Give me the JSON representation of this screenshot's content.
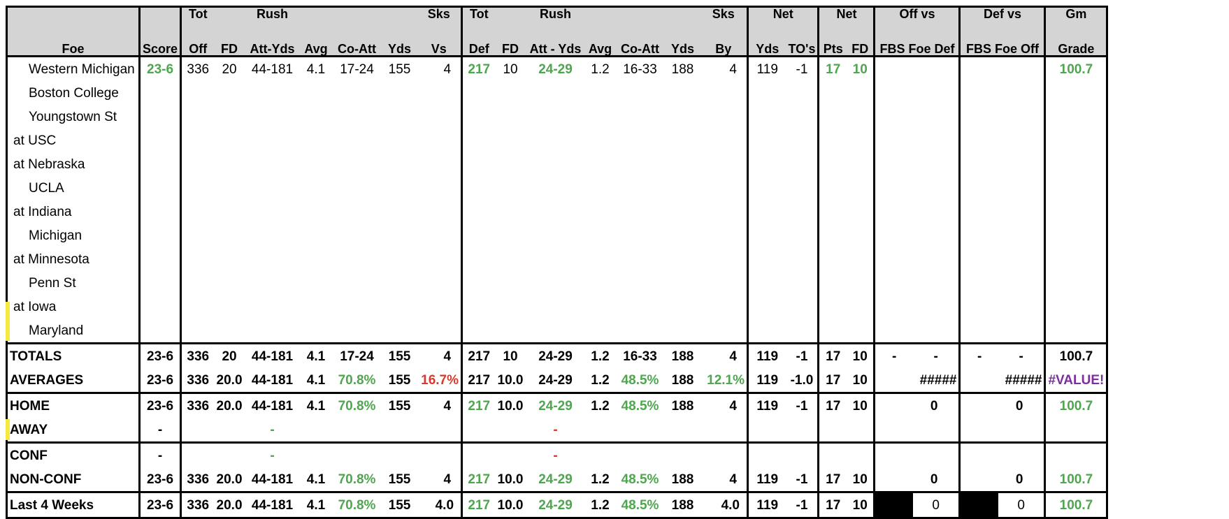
{
  "header": {
    "row1": {
      "tot_off": "Tot",
      "rush_off": "Rush",
      "sks_vs": "Sks",
      "tot_def": "Tot",
      "rush_def": "Rush",
      "sks_by": "Sks",
      "net_yds": "Net",
      "net_pts": "Net",
      "off_vs": "Off vs",
      "def_vs": "Def vs",
      "gm": "Gm"
    },
    "row2": {
      "foe": "Foe",
      "score": "Score",
      "off": "Off",
      "fd": "FD",
      "rush_att_yds": "Att-Yds",
      "avg": "Avg",
      "co_att": "Co-Att",
      "yds": "Yds",
      "vs": "Vs",
      "def": "Def",
      "dfd": "FD",
      "drush_att_yds": "Att - Yds",
      "davg": "Avg",
      "dco_att": "Co-Att",
      "dyds": "Yds",
      "by": "By",
      "net_yds": "Yds",
      "tos": "TO's",
      "pts": "Pts",
      "nfd": "FD",
      "fbs_foe_def": "FBS Foe Def",
      "fbs_foe_off": "FBS Foe Off",
      "grade": "Grade"
    }
  },
  "games": [
    {
      "foe": "Western Michigan",
      "loc": "home",
      "score": "23-6",
      "tot_off": "336",
      "fd": "20",
      "rush": "44-181",
      "avg": "4.1",
      "co_att": "17-24",
      "yds": "155",
      "sks_vs": "4",
      "tot_def": "217",
      "dfd": "10",
      "drush": "24-29",
      "davg": "1.2",
      "dco_att": "16-33",
      "dyds": "188",
      "sks_by": "4",
      "net_yds": "119",
      "tos": "-1",
      "pts": "17",
      "nfd": "10",
      "off_vs": "",
      "def_vs": "",
      "grade": "100.7"
    },
    {
      "foe": "Boston College",
      "loc": "home"
    },
    {
      "foe": "Youngstown St",
      "loc": "home"
    },
    {
      "foe": "at USC",
      "loc": "away"
    },
    {
      "foe": "at Nebraska",
      "loc": "away"
    },
    {
      "foe": "UCLA",
      "loc": "home"
    },
    {
      "foe": "at Indiana",
      "loc": "away"
    },
    {
      "foe": "Michigan",
      "loc": "home"
    },
    {
      "foe": "at Minnesota",
      "loc": "away"
    },
    {
      "foe": "Penn St",
      "loc": "home"
    },
    {
      "foe": "at Iowa",
      "loc": "away"
    },
    {
      "foe": "Maryland",
      "loc": "home"
    }
  ],
  "summary": {
    "totals": {
      "label": "TOTALS",
      "score": "23-6",
      "tot_off": "336",
      "fd": "20",
      "rush": "44-181",
      "avg": "4.1",
      "co_att": "17-24",
      "yds": "155",
      "sks_vs": "4",
      "tot_def": "217",
      "dfd": "10",
      "drush": "24-29",
      "davg": "1.2",
      "dco_att": "16-33",
      "dyds": "188",
      "sks_by": "4",
      "net_yds": "119",
      "tos": "-1",
      "pts": "17",
      "nfd": "10",
      "off_a": "-",
      "off_b": "-",
      "def_a": "-",
      "def_b": "-",
      "grade": "100.7"
    },
    "averages": {
      "label": "AVERAGES",
      "score": "23-6",
      "tot_off": "336",
      "fd": "20.0",
      "rush": "44-181",
      "avg": "4.1",
      "co_att": "70.8%",
      "yds": "155",
      "sks_vs": "16.7%",
      "tot_def": "217",
      "dfd": "10.0",
      "drush": "24-29",
      "davg": "1.2",
      "dco_att": "48.5%",
      "dyds": "188",
      "sks_by": "12.1%",
      "net_yds": "119",
      "tos": "-1.0",
      "pts": "17",
      "nfd": "10",
      "off_vs": "#####",
      "def_vs": "#####",
      "grade": "#VALUE!"
    },
    "home": {
      "label": "HOME",
      "score": "23-6",
      "tot_off": "336",
      "fd": "20.0",
      "rush": "44-181",
      "avg": "4.1",
      "co_att": "70.8%",
      "yds": "155",
      "sks_vs": "4",
      "tot_def": "217",
      "dfd": "10.0",
      "drush": "24-29",
      "davg": "1.2",
      "dco_att": "48.5%",
      "dyds": "188",
      "sks_by": "4",
      "net_yds": "119",
      "tos": "-1",
      "pts": "17",
      "nfd": "10",
      "off_vs": "0",
      "def_vs": "0",
      "grade": "100.7"
    },
    "away": {
      "label": "AWAY",
      "score": "-",
      "rush": "-",
      "drush": "-"
    },
    "conf": {
      "label": "CONF",
      "score": "-",
      "rush": "-",
      "drush": "-"
    },
    "nonconf": {
      "label": "NON-CONF",
      "score": "23-6",
      "tot_off": "336",
      "fd": "20.0",
      "rush": "44-181",
      "avg": "4.1",
      "co_att": "70.8%",
      "yds": "155",
      "sks_vs": "4",
      "tot_def": "217",
      "dfd": "10.0",
      "drush": "24-29",
      "davg": "1.2",
      "dco_att": "48.5%",
      "dyds": "188",
      "sks_by": "4",
      "net_yds": "119",
      "tos": "-1",
      "pts": "17",
      "nfd": "10",
      "off_vs": "0",
      "def_vs": "0",
      "grade": "100.7"
    },
    "last4": {
      "label": "Last 4 Weeks",
      "score": "23-6",
      "tot_off": "336",
      "fd": "20.0",
      "rush": "44-181",
      "avg": "4.1",
      "co_att": "70.8%",
      "yds": "155",
      "sks_vs": "4.0",
      "tot_def": "217",
      "dfd": "10.0",
      "drush": "24-29",
      "davg": "1.2",
      "dco_att": "48.5%",
      "dyds": "188",
      "sks_by": "4.0",
      "net_yds": "119",
      "tos": "-1",
      "pts": "17",
      "nfd": "10",
      "off_vs": "0",
      "def_vs": "0",
      "grade": "100.7"
    }
  },
  "colors": {
    "positive": "#4ea64e",
    "negative": "#d93a2e",
    "error": "#7e2e9e",
    "header_bg": "#d4d4d4"
  }
}
